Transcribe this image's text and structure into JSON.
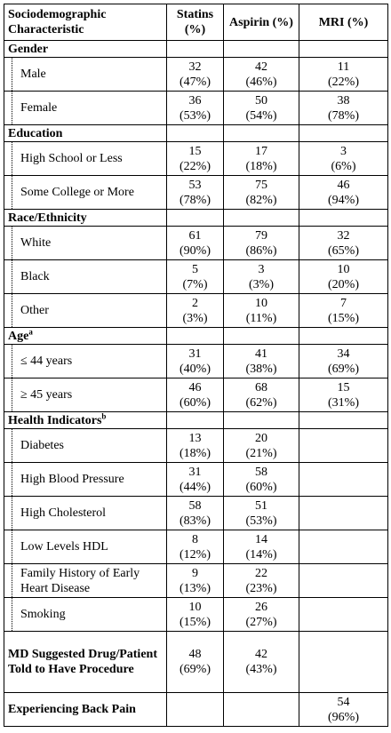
{
  "header": {
    "characteristic": "Sociodemographic Characteristic",
    "statins": "Statins (%)",
    "aspirin": "Aspirin (%)",
    "mri": "MRI (%)"
  },
  "sections": [
    {
      "title": "Gender",
      "sup": "",
      "rows": [
        {
          "label": "Male",
          "statins": [
            "32",
            "(47%)"
          ],
          "aspirin": [
            "42",
            "(46%)"
          ],
          "mri": [
            "11",
            "(22%)"
          ]
        },
        {
          "label": "Female",
          "statins": [
            "36",
            "(53%)"
          ],
          "aspirin": [
            "50",
            "(54%)"
          ],
          "mri": [
            "38",
            "(78%)"
          ]
        }
      ]
    },
    {
      "title": "Education",
      "sup": "",
      "rows": [
        {
          "label": "High School or Less",
          "statins": [
            "15",
            "(22%)"
          ],
          "aspirin": [
            "17",
            "(18%)"
          ],
          "mri": [
            "3",
            "(6%)"
          ]
        },
        {
          "label": "Some College or More",
          "statins": [
            "53",
            "(78%)"
          ],
          "aspirin": [
            "75",
            "(82%)"
          ],
          "mri": [
            "46",
            "(94%)"
          ]
        }
      ]
    },
    {
      "title": "Race/Ethnicity",
      "sup": "",
      "rows": [
        {
          "label": "White",
          "statins": [
            "61",
            "(90%)"
          ],
          "aspirin": [
            "79",
            "(86%)"
          ],
          "mri": [
            "32",
            "(65%)"
          ]
        },
        {
          "label": "Black",
          "statins": [
            "5",
            "(7%)"
          ],
          "aspirin": [
            "3",
            "(3%)"
          ],
          "mri": [
            "10",
            "(20%)"
          ]
        },
        {
          "label": "Other",
          "statins": [
            "2",
            "(3%)"
          ],
          "aspirin": [
            "10",
            "(11%)"
          ],
          "mri": [
            "7",
            "(15%)"
          ]
        }
      ]
    },
    {
      "title": "Age",
      "sup": "a",
      "rows": [
        {
          "label": "≤ 44 years",
          "statins": [
            "31",
            "(40%)"
          ],
          "aspirin": [
            "41",
            "(38%)"
          ],
          "mri": [
            "34",
            "(69%)"
          ]
        },
        {
          "label": "≥ 45 years",
          "statins": [
            "46",
            "(60%)"
          ],
          "aspirin": [
            "68",
            "(62%)"
          ],
          "mri": [
            "15",
            "(31%)"
          ]
        }
      ]
    },
    {
      "title": "Health Indicators",
      "sup": "b",
      "rows": [
        {
          "label": "Diabetes",
          "statins": [
            "13",
            "(18%)"
          ],
          "aspirin": [
            "20",
            "(21%)"
          ],
          "mri": [
            "",
            ""
          ]
        },
        {
          "label": "High Blood Pressure",
          "statins": [
            "31",
            "(44%)"
          ],
          "aspirin": [
            "58",
            "(60%)"
          ],
          "mri": [
            "",
            ""
          ]
        },
        {
          "label": "High Cholesterol",
          "statins": [
            "58",
            "(83%)"
          ],
          "aspirin": [
            "51",
            "(53%)"
          ],
          "mri": [
            "",
            ""
          ]
        },
        {
          "label": "Low Levels HDL",
          "statins": [
            "8",
            "(12%)"
          ],
          "aspirin": [
            "14",
            "(14%)"
          ],
          "mri": [
            "",
            ""
          ]
        },
        {
          "label": "Family History of Early Heart Disease",
          "statins": [
            "9",
            "(13%)"
          ],
          "aspirin": [
            "22",
            "(23%)"
          ],
          "mri": [
            "",
            ""
          ]
        },
        {
          "label": "Smoking",
          "statins": [
            "10",
            "(15%)"
          ],
          "aspirin": [
            "26",
            "(27%)"
          ],
          "mri": [
            "",
            ""
          ]
        }
      ]
    }
  ],
  "footer_rows": [
    {
      "label": "MD Suggested Drug/Patient Told to Have Procedure",
      "statins": [
        "48",
        "(69%)"
      ],
      "aspirin": [
        "42",
        "(43%)"
      ],
      "mri": [
        "",
        ""
      ]
    },
    {
      "label": "Experiencing Back Pain",
      "statins": [
        "",
        ""
      ],
      "aspirin": [
        "",
        ""
      ],
      "mri": [
        "54",
        "(96%)"
      ]
    }
  ]
}
